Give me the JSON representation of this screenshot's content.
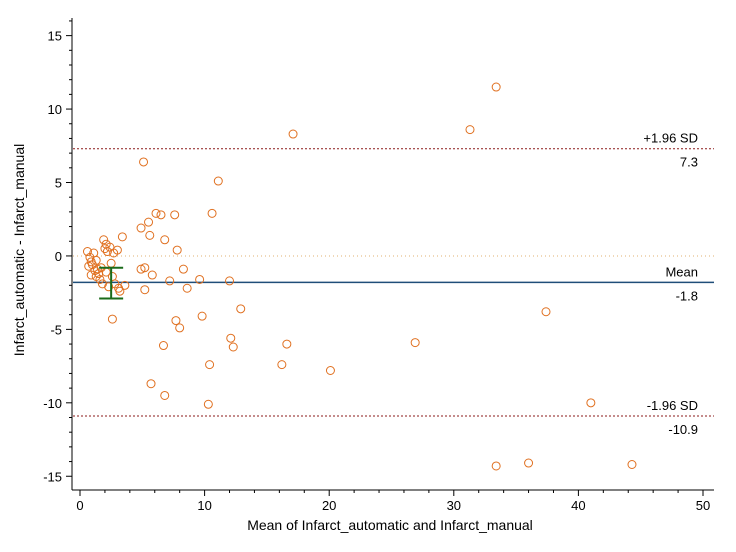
{
  "chart_data": {
    "type": "scatter",
    "title": "",
    "xlabel": "Mean of Infarct_automatic and Infarct_manual",
    "ylabel": "Infarct_automatic - Infarct_manual",
    "xlim": [
      0,
      50
    ],
    "ylim": [
      -15.8,
      16.2
    ],
    "xticks": [
      "0",
      "10",
      "20",
      "30",
      "40",
      "50"
    ],
    "yticks": [
      "15",
      "10",
      "5",
      "0",
      "-5",
      "-10",
      "-15"
    ],
    "xtick_values": [
      0,
      10,
      20,
      30,
      40,
      50
    ],
    "ytick_values": [
      15,
      10,
      5,
      0,
      -5,
      -10,
      -15
    ],
    "grid": false,
    "zero_line": 0,
    "mean": {
      "label": "Mean",
      "value_label": "-1.8",
      "value": -1.8,
      "color": "#1f4e79"
    },
    "upper_loa": {
      "label": "+1.96 SD",
      "value_label": "7.3",
      "value": 7.3,
      "color": "#8b1a1a"
    },
    "lower_loa": {
      "label": "-1.96 SD",
      "value_label": "-10.9",
      "value": -10.9,
      "color": "#8b1a1a"
    },
    "mean_ci": {
      "x": 2.5,
      "low": -2.9,
      "high": -0.8,
      "color": "#1a6b1a"
    },
    "marker_color": "#e07020",
    "points": [
      [
        0.6,
        0.3
      ],
      [
        0.8,
        -0.1
      ],
      [
        0.9,
        -0.4
      ],
      [
        0.7,
        -0.7
      ],
      [
        1.0,
        -0.6
      ],
      [
        1.1,
        0.2
      ],
      [
        1.2,
        -1.0
      ],
      [
        1.3,
        -1.4
      ],
      [
        1.4,
        -0.9
      ],
      [
        1.5,
        -1.2
      ],
      [
        1.6,
        -1.6
      ],
      [
        1.7,
        -0.8
      ],
      [
        1.8,
        -1.9
      ],
      [
        1.9,
        1.1
      ],
      [
        2.0,
        0.5
      ],
      [
        2.1,
        -1.1
      ],
      [
        2.2,
        0.3
      ],
      [
        2.3,
        -2.1
      ],
      [
        2.4,
        0.6
      ],
      [
        2.5,
        -0.5
      ],
      [
        2.6,
        -1.4
      ],
      [
        2.7,
        0.2
      ],
      [
        2.8,
        -1.9
      ],
      [
        3.0,
        0.4
      ],
      [
        3.1,
        -2.2
      ],
      [
        3.2,
        -2.4
      ],
      [
        3.4,
        1.3
      ],
      [
        3.6,
        -2.0
      ],
      [
        2.6,
        -4.3
      ],
      [
        0.9,
        -1.3
      ],
      [
        1.3,
        -0.3
      ],
      [
        2.1,
        0.8
      ],
      [
        4.9,
        1.9
      ],
      [
        4.9,
        -0.9
      ],
      [
        5.2,
        -2.3
      ],
      [
        5.2,
        -0.8
      ],
      [
        5.1,
        6.4
      ],
      [
        5.5,
        2.3
      ],
      [
        5.6,
        1.4
      ],
      [
        5.8,
        -1.3
      ],
      [
        6.1,
        2.9
      ],
      [
        6.5,
        2.8
      ],
      [
        6.8,
        1.1
      ],
      [
        7.2,
        -1.7
      ],
      [
        7.6,
        2.8
      ],
      [
        7.8,
        0.4
      ],
      [
        8.0,
        -4.9
      ],
      [
        7.7,
        -4.4
      ],
      [
        8.3,
        -0.9
      ],
      [
        8.6,
        -2.2
      ],
      [
        6.7,
        -6.1
      ],
      [
        6.8,
        -9.5
      ],
      [
        5.7,
        -8.7
      ],
      [
        9.6,
        -1.6
      ],
      [
        9.8,
        -4.1
      ],
      [
        10.4,
        -7.4
      ],
      [
        10.6,
        2.9
      ],
      [
        11.1,
        5.1
      ],
      [
        10.3,
        -10.1
      ],
      [
        12.0,
        -1.7
      ],
      [
        12.1,
        -5.6
      ],
      [
        12.3,
        -6.2
      ],
      [
        12.9,
        -3.6
      ],
      [
        16.2,
        -7.4
      ],
      [
        16.6,
        -6.0
      ],
      [
        17.1,
        8.3
      ],
      [
        20.1,
        -7.8
      ],
      [
        26.9,
        -5.9
      ],
      [
        31.3,
        8.6
      ],
      [
        33.4,
        11.5
      ],
      [
        33.4,
        -14.3
      ],
      [
        36.0,
        -14.1
      ],
      [
        37.4,
        -3.8
      ],
      [
        41.0,
        -10.0
      ],
      [
        44.3,
        -14.2
      ]
    ]
  }
}
